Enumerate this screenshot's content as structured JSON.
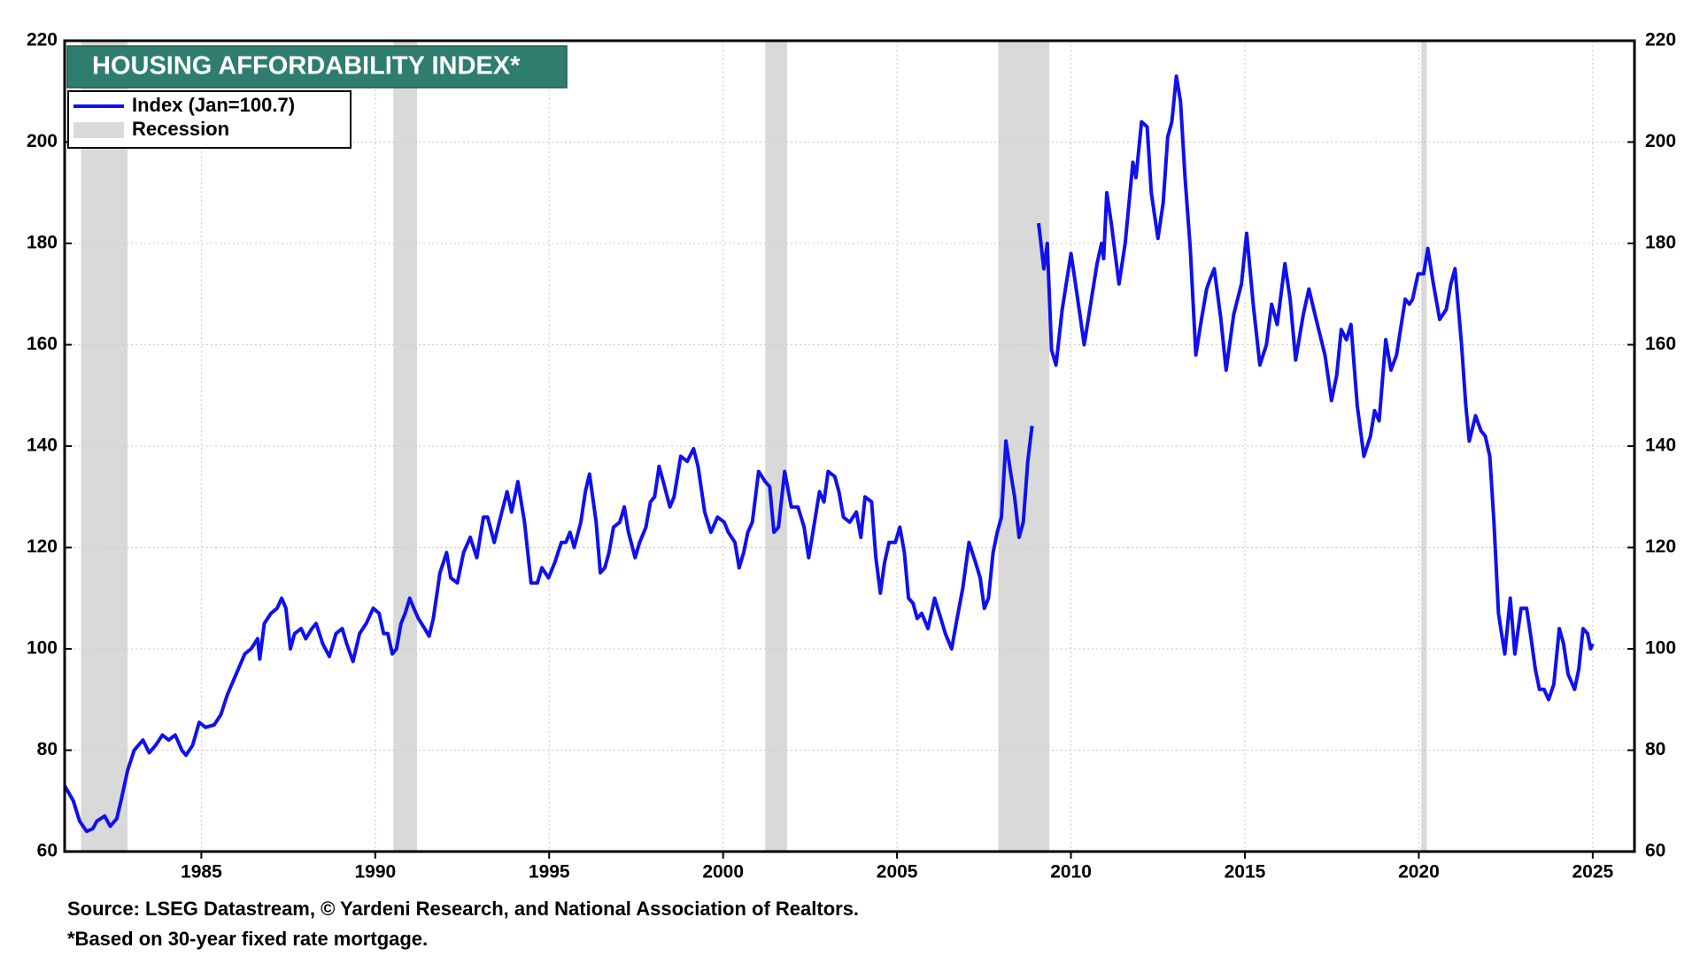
{
  "chart_data": {
    "type": "line",
    "title": "HOUSING AFFORDABILITY INDEX*",
    "source": "Source: LSEG Datastream, © Yardeni Research, and National Association of Realtors.",
    "note": "*Based on 30-year fixed rate mortgage.",
    "xlim": [
      1981.07,
      2026.2
    ],
    "xticks": [
      1985,
      1990,
      1995,
      2000,
      2005,
      2010,
      2015,
      2020,
      2025
    ],
    "ylim": [
      60,
      220
    ],
    "yticks": [
      60,
      80,
      100,
      120,
      140,
      160,
      180,
      200,
      220
    ],
    "y2lim": [
      60,
      220
    ],
    "y2ticks": [
      60,
      80,
      100,
      120,
      140,
      160,
      180,
      200,
      220
    ],
    "grid": true,
    "legend": "top-left",
    "recessions": {
      "name": "Recession",
      "color": "#d9d9d9",
      "spans": [
        [
          1981.54,
          1982.88
        ],
        [
          1990.52,
          1991.2
        ],
        [
          2001.21,
          2001.84
        ],
        [
          2007.91,
          2009.38
        ],
        [
          2020.07,
          2020.23
        ]
      ]
    },
    "series": [
      {
        "name": "Index (Jan=100.7)",
        "color": "#1010f0",
        "x": [
          1981.07,
          1981.32,
          1981.5,
          1981.7,
          1981.88,
          1982.0,
          1982.22,
          1982.38,
          1982.57,
          1982.69,
          1982.88,
          1983.07,
          1983.32,
          1983.5,
          1983.69,
          1983.88,
          1984.06,
          1984.25,
          1984.44,
          1984.56,
          1984.75,
          1984.94,
          1985.12,
          1985.37,
          1985.56,
          1985.75,
          1986.0,
          1986.25,
          1986.43,
          1986.62,
          1986.68,
          1986.81,
          1987.0,
          1987.18,
          1987.31,
          1987.43,
          1987.56,
          1987.68,
          1987.87,
          1988.0,
          1988.18,
          1988.3,
          1988.49,
          1988.68,
          1988.87,
          1989.05,
          1989.18,
          1989.36,
          1989.55,
          1989.74,
          1989.94,
          1990.11,
          1990.24,
          1990.36,
          1990.49,
          1990.61,
          1990.74,
          1990.86,
          1990.99,
          1991.11,
          1991.24,
          1991.42,
          1991.55,
          1991.67,
          1991.86,
          1992.05,
          1992.17,
          1992.36,
          1992.54,
          1992.73,
          1992.92,
          1993.11,
          1993.23,
          1993.42,
          1993.6,
          1993.79,
          1993.92,
          1994.1,
          1994.29,
          1994.48,
          1994.66,
          1994.79,
          1994.98,
          1995.16,
          1995.35,
          1995.48,
          1995.6,
          1995.72,
          1995.91,
          1996.04,
          1996.16,
          1996.35,
          1996.47,
          1996.6,
          1996.72,
          1996.85,
          1997.03,
          1997.16,
          1997.28,
          1997.47,
          1997.6,
          1997.78,
          1997.91,
          1998.03,
          1998.16,
          1998.28,
          1998.47,
          1998.59,
          1998.78,
          1998.97,
          1999.15,
          1999.28,
          1999.47,
          1999.65,
          1999.84,
          2000.03,
          2000.15,
          2000.34,
          2000.46,
          2000.59,
          2000.71,
          2000.84,
          2001.02,
          2001.21,
          2001.34,
          2001.46,
          2001.59,
          2001.77,
          2001.96,
          2002.15,
          2002.33,
          2002.46,
          2002.58,
          2002.77,
          2002.9,
          2003.02,
          2003.21,
          2003.33,
          2003.46,
          2003.64,
          2003.83,
          2003.96,
          2004.08,
          2004.27,
          2004.39,
          2004.52,
          2004.64,
          2004.77,
          2004.95,
          2005.08,
          2005.21,
          2005.33,
          2005.46,
          2005.58,
          2005.71,
          2005.89,
          2006.08,
          2006.26,
          2006.39,
          2006.57,
          2006.7,
          2006.89,
          2007.07,
          2007.26,
          2007.39,
          2007.51,
          2007.63,
          2007.76,
          2007.88,
          2008.0,
          2008.13,
          2008.26,
          2008.38,
          2008.51,
          2008.63,
          2008.76,
          2008.88,
          2009.0,
          2009.07,
          2009.22,
          2009.32,
          2009.44,
          2009.57,
          2009.75,
          2010.0,
          2010.13,
          2010.38,
          2010.75,
          2010.88,
          2010.94,
          2011.03,
          2011.16,
          2011.38,
          2011.56,
          2011.78,
          2011.87,
          2012.03,
          2012.19,
          2012.31,
          2012.5,
          2012.65,
          2012.78,
          2012.9,
          2013.03,
          2013.15,
          2013.28,
          2013.43,
          2013.59,
          2013.75,
          2013.9,
          2014.0,
          2014.12,
          2014.31,
          2014.46,
          2014.68,
          2014.9,
          2015.05,
          2015.24,
          2015.43,
          2015.62,
          2015.77,
          2015.93,
          2016.15,
          2016.3,
          2016.46,
          2016.68,
          2016.84,
          2017.05,
          2017.3,
          2017.49,
          2017.64,
          2017.77,
          2017.92,
          2018.05,
          2018.23,
          2018.42,
          2018.61,
          2018.73,
          2018.86,
          2019.05,
          2019.2,
          2019.36,
          2019.61,
          2019.73,
          2019.82,
          2019.98,
          2020.14,
          2020.26,
          2020.42,
          2020.6,
          2020.79,
          2020.92,
          2021.04,
          2021.23,
          2021.35,
          2021.45,
          2021.63,
          2021.79,
          2021.91,
          2022.04,
          2022.16,
          2022.29,
          2022.38,
          2022.47,
          2022.63,
          2022.76,
          2022.94,
          2023.1,
          2023.23,
          2023.35,
          2023.47,
          2023.6,
          2023.73,
          2023.88,
          2024.04,
          2024.16,
          2024.29,
          2024.48,
          2024.6,
          2024.72,
          2024.85,
          2024.94,
          2025.0
        ],
        "values": [
          73,
          70,
          66,
          64,
          64.5,
          66,
          67,
          65,
          66.5,
          70,
          76,
          80,
          82,
          79.5,
          81,
          83,
          82,
          83,
          80,
          79,
          81,
          85.5,
          84.5,
          85,
          87,
          91,
          95,
          99,
          100,
          102,
          98,
          105,
          107,
          108,
          110,
          108,
          100,
          103,
          104,
          102,
          104,
          105,
          101,
          98.5,
          103,
          104,
          101,
          97.5,
          103,
          105,
          108,
          107,
          103,
          103,
          99,
          100,
          105,
          107,
          110,
          108,
          106,
          104,
          102.5,
          106,
          115,
          119,
          114,
          113,
          119,
          122,
          118,
          126,
          126,
          121,
          126,
          131,
          127,
          133,
          125,
          113,
          113,
          116,
          114,
          117,
          121,
          121,
          123,
          120,
          125,
          131,
          134.5,
          125,
          115,
          116,
          119,
          124,
          125,
          128,
          123,
          118,
          121,
          124,
          129,
          130,
          136,
          133,
          128,
          130,
          138,
          137,
          139.5,
          136,
          127,
          123,
          126,
          125,
          123,
          121,
          116,
          119,
          123,
          125,
          135,
          133,
          132,
          123,
          124,
          135,
          128,
          128,
          124,
          118,
          123,
          131,
          129,
          135,
          134,
          131,
          126,
          125,
          127,
          122,
          130,
          129,
          118,
          111,
          117,
          121,
          121,
          124,
          119,
          110,
          109,
          106,
          107,
          104,
          110,
          106,
          103,
          100,
          105,
          112,
          121,
          117,
          114,
          108,
          110,
          119,
          123,
          126,
          141,
          135,
          130,
          122,
          125,
          137,
          144,
          null,
          184,
          175,
          180,
          159,
          156,
          167,
          178,
          172,
          160,
          176,
          180,
          177,
          190,
          184,
          172,
          180,
          196,
          193,
          204,
          203,
          190,
          181,
          188,
          201,
          204,
          213,
          208,
          193,
          179,
          158,
          165,
          171,
          173,
          175,
          165,
          155,
          166,
          172,
          182,
          168,
          156,
          160,
          168,
          164,
          176,
          169,
          157,
          166,
          171,
          165,
          158,
          149,
          154,
          163,
          161,
          164,
          148,
          138,
          142,
          147,
          145,
          161,
          155,
          158,
          169,
          168,
          169,
          174,
          174,
          179,
          172,
          165,
          167,
          172,
          175,
          160,
          148,
          141,
          146,
          143,
          142,
          138,
          125,
          107,
          103,
          99,
          110,
          99,
          108,
          108,
          102,
          96,
          92,
          92,
          90,
          93,
          104,
          101,
          95,
          92,
          96,
          104,
          103,
          100,
          101
        ]
      }
    ]
  }
}
